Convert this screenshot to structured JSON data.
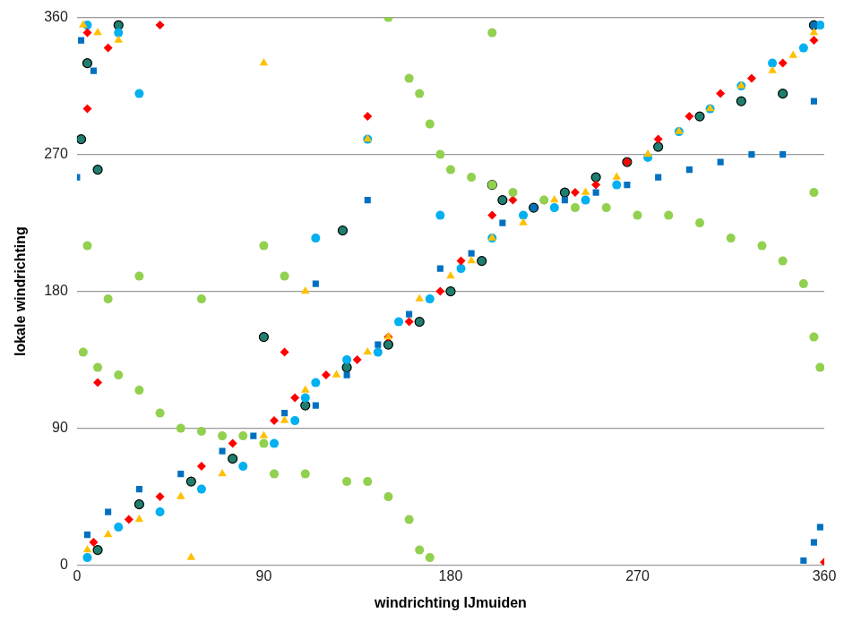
{
  "chart_data": {
    "type": "scatter",
    "x_label": "windrichting IJmuiden",
    "y_label": "lokale windrichting",
    "xlim": [
      0,
      360
    ],
    "xticks": [
      0,
      90,
      180,
      270,
      360
    ],
    "ylim": [
      0,
      360
    ],
    "yticks": [
      0,
      90,
      180,
      270,
      360
    ],
    "grid": "y",
    "series": [
      {
        "color": "#92D050",
        "marker": "circle",
        "x": [
          5,
          3,
          10,
          20,
          30,
          40,
          50,
          60,
          70,
          80,
          90,
          15,
          30,
          90,
          95,
          110,
          130,
          140,
          150,
          160,
          165,
          170,
          160,
          165,
          170,
          175,
          180,
          190,
          200,
          210,
          225,
          240,
          255,
          270,
          285,
          300,
          315,
          330,
          340,
          350,
          355,
          358,
          355,
          150,
          200,
          100,
          60
        ],
        "values": [
          210,
          140,
          130,
          125,
          115,
          100,
          90,
          88,
          85,
          85,
          80,
          175,
          190,
          210,
          60,
          60,
          55,
          55,
          45,
          30,
          10,
          5,
          320,
          310,
          290,
          270,
          260,
          255,
          250,
          245,
          240,
          235,
          235,
          230,
          230,
          225,
          215,
          210,
          200,
          185,
          150,
          130,
          245,
          360,
          350,
          190,
          175
        ]
      },
      {
        "color": "#FFC000",
        "marker": "triangle",
        "x": [
          3,
          10,
          20,
          5,
          15,
          30,
          50,
          70,
          90,
          100,
          110,
          125,
          140,
          150,
          165,
          180,
          190,
          200,
          215,
          230,
          245,
          260,
          275,
          290,
          305,
          320,
          335,
          345,
          355,
          90,
          140,
          110,
          55
        ],
        "values": [
          355,
          350,
          345,
          10,
          20,
          30,
          45,
          60,
          85,
          95,
          115,
          125,
          140,
          150,
          175,
          190,
          200,
          215,
          225,
          240,
          245,
          255,
          270,
          285,
          300,
          315,
          325,
          335,
          350,
          330,
          280,
          180,
          5
        ]
      },
      {
        "color": "#FF0000",
        "marker": "diamond",
        "x": [
          5,
          15,
          40,
          8,
          25,
          40,
          60,
          75,
          95,
          105,
          120,
          135,
          150,
          160,
          175,
          185,
          200,
          210,
          225,
          240,
          250,
          265,
          280,
          295,
          310,
          325,
          340,
          355,
          140,
          5,
          10,
          360,
          100
        ],
        "values": [
          350,
          340,
          355,
          15,
          30,
          45,
          65,
          80,
          95,
          110,
          125,
          135,
          150,
          160,
          180,
          200,
          230,
          240,
          240,
          245,
          250,
          265,
          280,
          295,
          310,
          320,
          330,
          345,
          295,
          300,
          120,
          2,
          140
        ]
      },
      {
        "color": "#0070C0",
        "marker": "square",
        "x": [
          2,
          8,
          0,
          5,
          15,
          30,
          50,
          70,
          85,
          100,
          115,
          130,
          145,
          160,
          175,
          190,
          205,
          220,
          235,
          250,
          265,
          280,
          295,
          310,
          325,
          340,
          355,
          355,
          358,
          350,
          140,
          115,
          355
        ],
        "values": [
          345,
          325,
          255,
          20,
          35,
          50,
          60,
          75,
          85,
          100,
          105,
          125,
          145,
          165,
          195,
          205,
          225,
          235,
          240,
          245,
          250,
          255,
          260,
          265,
          270,
          270,
          305,
          15,
          25,
          3,
          240,
          185,
          355
        ]
      },
      {
        "color": "#00B0F0",
        "marker": "circle",
        "x": [
          5,
          30,
          20,
          5,
          20,
          40,
          60,
          80,
          95,
          105,
          115,
          130,
          145,
          155,
          170,
          185,
          200,
          215,
          230,
          245,
          260,
          275,
          290,
          305,
          320,
          335,
          350,
          358,
          140,
          175,
          115,
          110
        ],
        "values": [
          355,
          310,
          350,
          5,
          25,
          35,
          50,
          65,
          80,
          95,
          120,
          135,
          140,
          160,
          175,
          195,
          215,
          230,
          235,
          240,
          250,
          268,
          285,
          300,
          315,
          330,
          340,
          355,
          280,
          230,
          215,
          110
        ]
      },
      {
        "color": "#1F7F6F",
        "marker": "circle",
        "x": [
          5,
          20,
          2,
          10,
          10,
          30,
          55,
          75,
          90,
          110,
          130,
          150,
          165,
          180,
          195,
          205,
          220,
          235,
          250,
          265,
          280,
          300,
          320,
          340,
          355,
          128,
          200
        ],
        "values": [
          330,
          355,
          280,
          260,
          10,
          40,
          55,
          70,
          150,
          105,
          130,
          145,
          160,
          180,
          200,
          240,
          235,
          245,
          255,
          265,
          275,
          295,
          305,
          310,
          355,
          220,
          250
        ]
      }
    ]
  }
}
